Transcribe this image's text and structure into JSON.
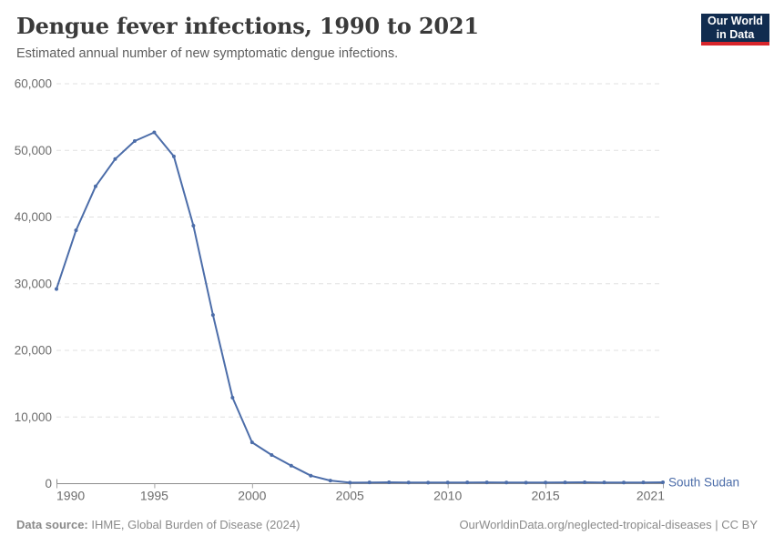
{
  "header": {
    "title": "Dengue fever infections, 1990 to 2021",
    "subtitle": "Estimated annual number of new symptomatic dengue infections.",
    "logo": {
      "line1": "Our World",
      "line2": "in Data",
      "bg_color": "#112c4f",
      "accent_color": "#d8252b"
    }
  },
  "chart_data": {
    "type": "line",
    "title": "Dengue fever infections, 1990 to 2021",
    "xlabel": "",
    "ylabel": "",
    "x": [
      1990,
      1991,
      1992,
      1993,
      1994,
      1995,
      1996,
      1997,
      1998,
      1999,
      2000,
      2001,
      2002,
      2003,
      2004,
      2005,
      2006,
      2007,
      2008,
      2009,
      2010,
      2011,
      2012,
      2013,
      2014,
      2015,
      2016,
      2017,
      2018,
      2019,
      2020,
      2021
    ],
    "series": [
      {
        "name": "South Sudan",
        "color": "#4c6da9",
        "values": [
          29200,
          38000,
          44600,
          48700,
          51400,
          52700,
          49100,
          38700,
          25300,
          12900,
          6200,
          4300,
          2700,
          1200,
          460,
          150,
          180,
          200,
          170,
          160,
          170,
          180,
          190,
          170,
          160,
          170,
          190,
          200,
          180,
          170,
          180,
          200
        ]
      }
    ],
    "ylim": [
      0,
      60000
    ],
    "yticks": [
      0,
      10000,
      20000,
      30000,
      40000,
      50000,
      60000
    ],
    "ytick_labels": [
      "0",
      "10,000",
      "20,000",
      "30,000",
      "40,000",
      "50,000",
      "60,000"
    ],
    "xticks": [
      1990,
      1995,
      2000,
      2005,
      2010,
      2015,
      2021
    ],
    "xtick_labels": [
      "1990",
      "1995",
      "2000",
      "2005",
      "2010",
      "2015",
      "2021"
    ],
    "grid": "dashed horizontal gridlines, legend as end-of-line entity label",
    "colors": {
      "grid": "#e0e0e0",
      "axis": "#8c8c8c",
      "tick": "#a3a3a3",
      "tick_label": "#6d6d6d"
    }
  },
  "footer": {
    "source_label": "Data source:",
    "source_text": " IHME, Global Burden of Disease (2024)",
    "credit": "OurWorldinData.org/neglected-tropical-diseases | CC BY"
  }
}
